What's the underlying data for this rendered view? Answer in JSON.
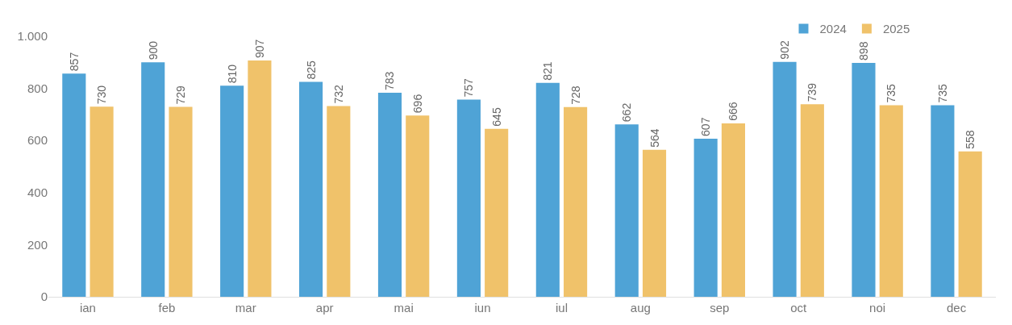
{
  "chart_data": {
    "type": "bar",
    "categories": [
      "ian",
      "feb",
      "mar",
      "apr",
      "mai",
      "iun",
      "iul",
      "aug",
      "sep",
      "oct",
      "noi",
      "dec"
    ],
    "series": [
      {
        "name": "2024",
        "color": "#4fa3d6",
        "values": [
          857,
          900,
          810,
          825,
          783,
          757,
          821,
          662,
          607,
          902,
          898,
          735
        ]
      },
      {
        "name": "2025",
        "color": "#f0c26a",
        "values": [
          730,
          729,
          907,
          732,
          696,
          645,
          728,
          564,
          666,
          739,
          735,
          558
        ]
      }
    ],
    "ylim": [
      0,
      1000
    ],
    "yticks": [
      0,
      200,
      400,
      600,
      800,
      {
        "value": 1000,
        "label": "1.000"
      }
    ],
    "data_labels": true,
    "legend": "top right"
  }
}
